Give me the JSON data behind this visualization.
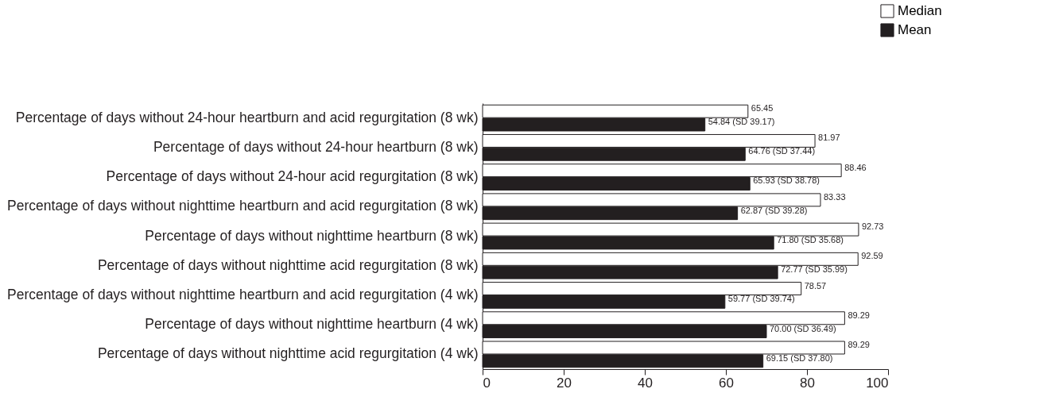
{
  "chart_data": {
    "type": "bar",
    "orientation": "horizontal",
    "categories": [
      "Percentage of days without 24-hour heartburn and acid regurgitation (8 wk)",
      "Percentage of days without 24-hour heartburn (8 wk)",
      "Percentage of days without 24-hour acid regurgitation (8 wk)",
      "Percentage of days without nighttime heartburn and acid regurgitation (8 wk)",
      "Percentage of days without nighttime heartburn (8 wk)",
      "Percentage of days without nighttime acid regurgitation (8 wk)",
      "Percentage of days without nighttime heartburn and acid regurgitation (4 wk)",
      "Percentage of days without nighttime heartburn (4 wk)",
      "Percentage of days without nighttime acid regurgitation (4 wk)"
    ],
    "series": [
      {
        "name": "Median",
        "color": "#ffffff",
        "values": [
          65.45,
          81.97,
          88.46,
          83.33,
          92.73,
          92.59,
          78.57,
          89.29,
          89.29
        ],
        "value_labels": [
          "65.45",
          "81.97",
          "88.46",
          "83.33",
          "92.73",
          "92.59",
          "78.57",
          "89.29",
          "89.29"
        ]
      },
      {
        "name": "Mean",
        "color": "#231f20",
        "values": [
          54.84,
          64.76,
          65.93,
          62.87,
          71.8,
          72.77,
          59.77,
          70.0,
          69.15
        ],
        "value_labels": [
          "54.84 (SD 39.17)",
          "64.76 (SD 37.44)",
          "65.93 (SD 38.78)",
          "62.87 (SD 39.28)",
          "71.80 (SD 35.68)",
          "72.77 (SD 35.99)",
          "59.77 (SD 39.74)",
          "70.00 (SD 36.49)",
          "69.15 (SD 37.80)"
        ]
      }
    ],
    "xlim": [
      0,
      100
    ],
    "xticks": [
      0,
      20,
      40,
      60,
      80,
      100
    ],
    "grid": false,
    "legend": "top right"
  }
}
